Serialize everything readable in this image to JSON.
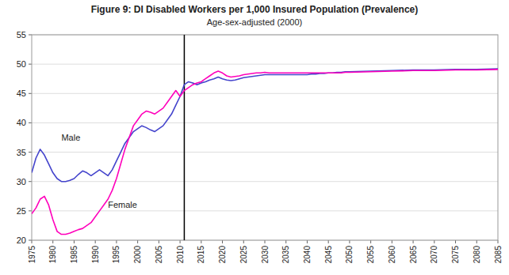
{
  "chart_data": {
    "type": "line",
    "title": "Figure 9:  DI Disabled Workers per 1,000 Insured Population (Prevalence)",
    "subtitle": "Age-sex-adjusted (2000)",
    "xlim": [
      1975,
      2085
    ],
    "ylim": [
      20,
      55
    ],
    "xticks": [
      1975,
      1980,
      1985,
      1990,
      1995,
      2000,
      2005,
      2010,
      2015,
      2020,
      2025,
      2030,
      2035,
      2040,
      2045,
      2050,
      2055,
      2060,
      2065,
      2070,
      2075,
      2080,
      2085
    ],
    "yticks": [
      20,
      25,
      30,
      35,
      40,
      45,
      50,
      55
    ],
    "grid": "y",
    "reference_lines": [
      {
        "x": 2011,
        "color": "#000000"
      }
    ],
    "series": [
      {
        "name": "Male",
        "color": "#4444CC",
        "label_x": 1982,
        "label_y": 37.0,
        "x": [
          1975,
          1976,
          1977,
          1978,
          1979,
          1980,
          1981,
          1982,
          1983,
          1984,
          1985,
          1986,
          1987,
          1988,
          1989,
          1990,
          1991,
          1992,
          1993,
          1994,
          1995,
          1996,
          1997,
          1998,
          1999,
          2000,
          2001,
          2002,
          2003,
          2004,
          2005,
          2006,
          2007,
          2008,
          2009,
          2010,
          2011,
          2012,
          2013,
          2014,
          2015,
          2016,
          2017,
          2018,
          2019,
          2020,
          2021,
          2022,
          2023,
          2024,
          2025,
          2026,
          2027,
          2028,
          2029,
          2030,
          2031,
          2032,
          2033,
          2034,
          2035,
          2036,
          2037,
          2038,
          2039,
          2040,
          2041,
          2042,
          2043,
          2044,
          2045,
          2046,
          2047,
          2048,
          2049,
          2050,
          2055,
          2060,
          2065,
          2070,
          2075,
          2080,
          2085
        ],
        "values": [
          31.5,
          34.0,
          35.5,
          34.5,
          33.0,
          31.5,
          30.5,
          30.0,
          30.0,
          30.2,
          30.5,
          31.2,
          31.8,
          31.5,
          31.0,
          31.5,
          32.0,
          31.5,
          31.0,
          32.0,
          33.5,
          35.0,
          36.5,
          37.5,
          38.5,
          39.0,
          39.5,
          39.2,
          38.8,
          38.5,
          39.0,
          39.5,
          40.5,
          41.5,
          43.0,
          44.5,
          46.5,
          47.0,
          46.8,
          46.5,
          46.8,
          47.0,
          47.3,
          47.5,
          47.8,
          47.5,
          47.3,
          47.2,
          47.3,
          47.5,
          47.7,
          47.8,
          47.9,
          48.0,
          48.1,
          48.2,
          48.2,
          48.2,
          48.2,
          48.2,
          48.2,
          48.2,
          48.2,
          48.2,
          48.2,
          48.2,
          48.3,
          48.3,
          48.4,
          48.4,
          48.5,
          48.5,
          48.6,
          48.6,
          48.7,
          48.7,
          48.8,
          48.9,
          49.0,
          49.0,
          49.1,
          49.1,
          49.2
        ]
      },
      {
        "name": "Female",
        "color": "#FF00BB",
        "label_x": 1993,
        "label_y": 25.5,
        "x": [
          1975,
          1976,
          1977,
          1978,
          1979,
          1980,
          1981,
          1982,
          1983,
          1984,
          1985,
          1986,
          1987,
          1988,
          1989,
          1990,
          1991,
          1992,
          1993,
          1994,
          1995,
          1996,
          1997,
          1998,
          1999,
          2000,
          2001,
          2002,
          2003,
          2004,
          2005,
          2006,
          2007,
          2008,
          2009,
          2010,
          2011,
          2012,
          2013,
          2014,
          2015,
          2016,
          2017,
          2018,
          2019,
          2020,
          2021,
          2022,
          2023,
          2024,
          2025,
          2026,
          2027,
          2028,
          2029,
          2030,
          2031,
          2032,
          2033,
          2034,
          2035,
          2036,
          2037,
          2038,
          2039,
          2040,
          2041,
          2042,
          2043,
          2044,
          2045,
          2046,
          2047,
          2048,
          2049,
          2050,
          2055,
          2060,
          2065,
          2070,
          2075,
          2080,
          2085
        ],
        "values": [
          24.5,
          25.5,
          27.0,
          27.5,
          26.0,
          23.5,
          21.5,
          21.0,
          21.0,
          21.2,
          21.5,
          21.8,
          22.0,
          22.5,
          23.0,
          24.0,
          25.0,
          26.0,
          27.0,
          28.5,
          30.5,
          33.0,
          35.5,
          37.5,
          39.5,
          40.5,
          41.5,
          42.0,
          41.8,
          41.5,
          42.0,
          42.5,
          43.5,
          44.5,
          45.5,
          44.5,
          45.5,
          46.0,
          46.5,
          46.8,
          47.0,
          47.5,
          48.0,
          48.5,
          48.8,
          48.5,
          48.0,
          47.8,
          47.9,
          48.0,
          48.2,
          48.3,
          48.4,
          48.5,
          48.5,
          48.6,
          48.5,
          48.5,
          48.5,
          48.5,
          48.5,
          48.5,
          48.5,
          48.5,
          48.5,
          48.5,
          48.5,
          48.5,
          48.5,
          48.5,
          48.5,
          48.5,
          48.5,
          48.5,
          48.6,
          48.6,
          48.7,
          48.8,
          48.9,
          48.9,
          49.0,
          49.0,
          49.1
        ]
      }
    ]
  }
}
